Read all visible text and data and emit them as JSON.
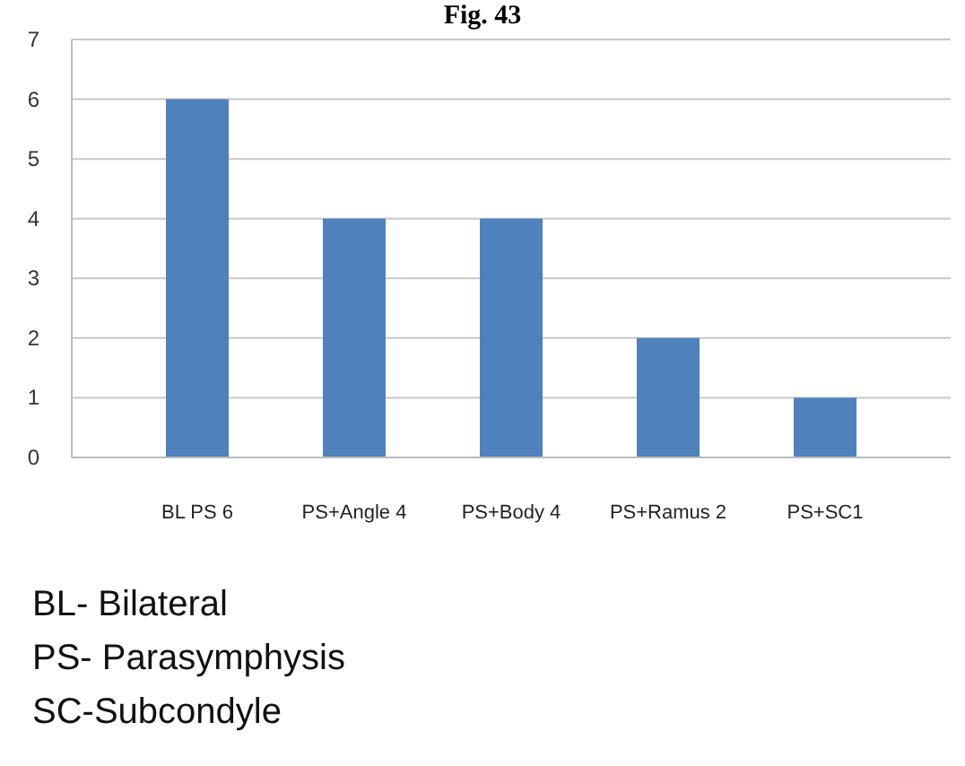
{
  "chart_data": {
    "type": "bar",
    "title": "Fig. 43",
    "categories": [
      "BL PS 6",
      "PS+Angle 4",
      "PS+Body 4",
      "PS+Ramus 2",
      "PS+SC1"
    ],
    "values": [
      6,
      4,
      4,
      2,
      1
    ],
    "color": "#4f81bd",
    "ylim": [
      0,
      7
    ],
    "yticks": [
      0,
      1,
      2,
      3,
      4,
      5,
      6,
      7
    ],
    "grid": "y",
    "annotations": [
      "BL- Bilateral",
      "PS- Parasymphysis",
      "SC-Subcondyle"
    ]
  }
}
